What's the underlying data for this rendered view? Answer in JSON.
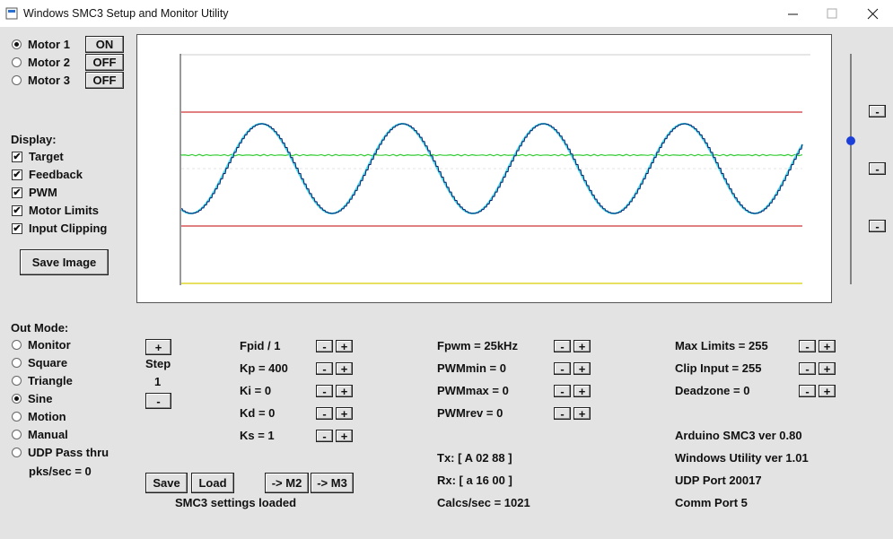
{
  "window": {
    "title": "Windows SMC3 Setup and Monitor Utility"
  },
  "motors": [
    {
      "label": "Motor 1",
      "button": "ON",
      "selected": true
    },
    {
      "label": "Motor 2",
      "button": "OFF",
      "selected": false
    },
    {
      "label": "Motor 3",
      "button": "OFF",
      "selected": false
    }
  ],
  "display": {
    "label": "Display:",
    "options": [
      {
        "label": "Target",
        "checked": true
      },
      {
        "label": "Feedback",
        "checked": true
      },
      {
        "label": "PWM",
        "checked": true
      },
      {
        "label": "Motor Limits",
        "checked": true
      },
      {
        "label": "Input Clipping",
        "checked": true
      }
    ]
  },
  "save_image": "Save Image",
  "out_mode": {
    "label": "Out Mode:",
    "options": [
      {
        "label": "Monitor",
        "selected": false
      },
      {
        "label": "Square",
        "selected": false
      },
      {
        "label": "Triangle",
        "selected": false
      },
      {
        "label": "Sine",
        "selected": true
      },
      {
        "label": "Motion",
        "selected": false
      },
      {
        "label": "Manual",
        "selected": false
      },
      {
        "label": "UDP Pass thru",
        "selected": false
      }
    ]
  },
  "pks": "pks/sec = 0",
  "spin": {
    "minus": "-",
    "plus": "+"
  },
  "step": {
    "label": "Step",
    "value": "1"
  },
  "buttons": [
    "Save",
    "Load",
    "-> M2",
    "-> M3"
  ],
  "status": "SMC3 settings loaded",
  "params": [
    [
      "Fpid / 1",
      "Kp = 400",
      "Ki = 0",
      "Kd = 0",
      "Ks = 1"
    ],
    [
      "Fpwm = 25kHz",
      "PWMmin = 0",
      "PWMmax = 0",
      "PWMrev = 0"
    ],
    [
      "Max Limits = 255",
      "Clip Input = 255",
      "Deadzone = 0"
    ]
  ],
  "comm": [
    "Tx: [ A 02 88 ]",
    "Rx: [ a 16 00 ]",
    "Calcs/sec = 1021"
  ],
  "info": [
    "Arduino SMC3 ver 0.80",
    "Windows Utility ver 1.01",
    "UDP Port 20017",
    "Comm Port 5"
  ]
}
